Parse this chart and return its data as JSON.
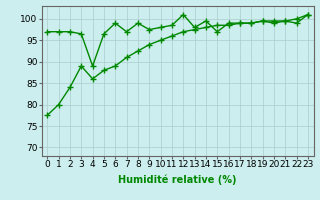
{
  "line1_x": [
    0,
    1,
    2,
    3,
    4,
    5,
    6,
    7,
    8,
    9,
    10,
    11,
    12,
    13,
    14,
    15,
    16,
    17,
    18,
    19,
    20,
    21,
    22,
    23
  ],
  "line1_y": [
    77.5,
    80,
    84,
    89,
    86,
    88,
    89,
    91,
    92.5,
    94,
    95,
    96,
    97,
    97.5,
    98,
    98.5,
    98.5,
    99,
    99,
    99.5,
    99.5,
    99.5,
    100,
    101
  ],
  "line2_x": [
    0,
    1,
    2,
    3,
    4,
    5,
    6,
    7,
    8,
    9,
    10,
    11,
    12,
    13,
    14,
    15,
    16,
    17,
    18,
    19,
    20,
    21,
    22,
    23
  ],
  "line2_y": [
    97,
    97,
    97,
    96.5,
    89,
    96.5,
    99,
    97,
    99,
    97.5,
    98,
    98.5,
    101,
    98,
    99.5,
    97,
    99,
    99,
    99,
    99.5,
    99,
    99.5,
    99,
    101
  ],
  "line_color": "#008800",
  "bg_color": "#cceeee",
  "grid_color": "#aacccc",
  "xlabel": "Humidité relative (%)",
  "yticks": [
    70,
    75,
    80,
    85,
    90,
    95,
    100
  ],
  "ylim": [
    68,
    103
  ],
  "xlim": [
    -0.5,
    23.5
  ],
  "marker": "+",
  "markersize": 4,
  "linewidth": 1.0,
  "xlabel_fontsize": 7,
  "tick_fontsize": 6.5
}
